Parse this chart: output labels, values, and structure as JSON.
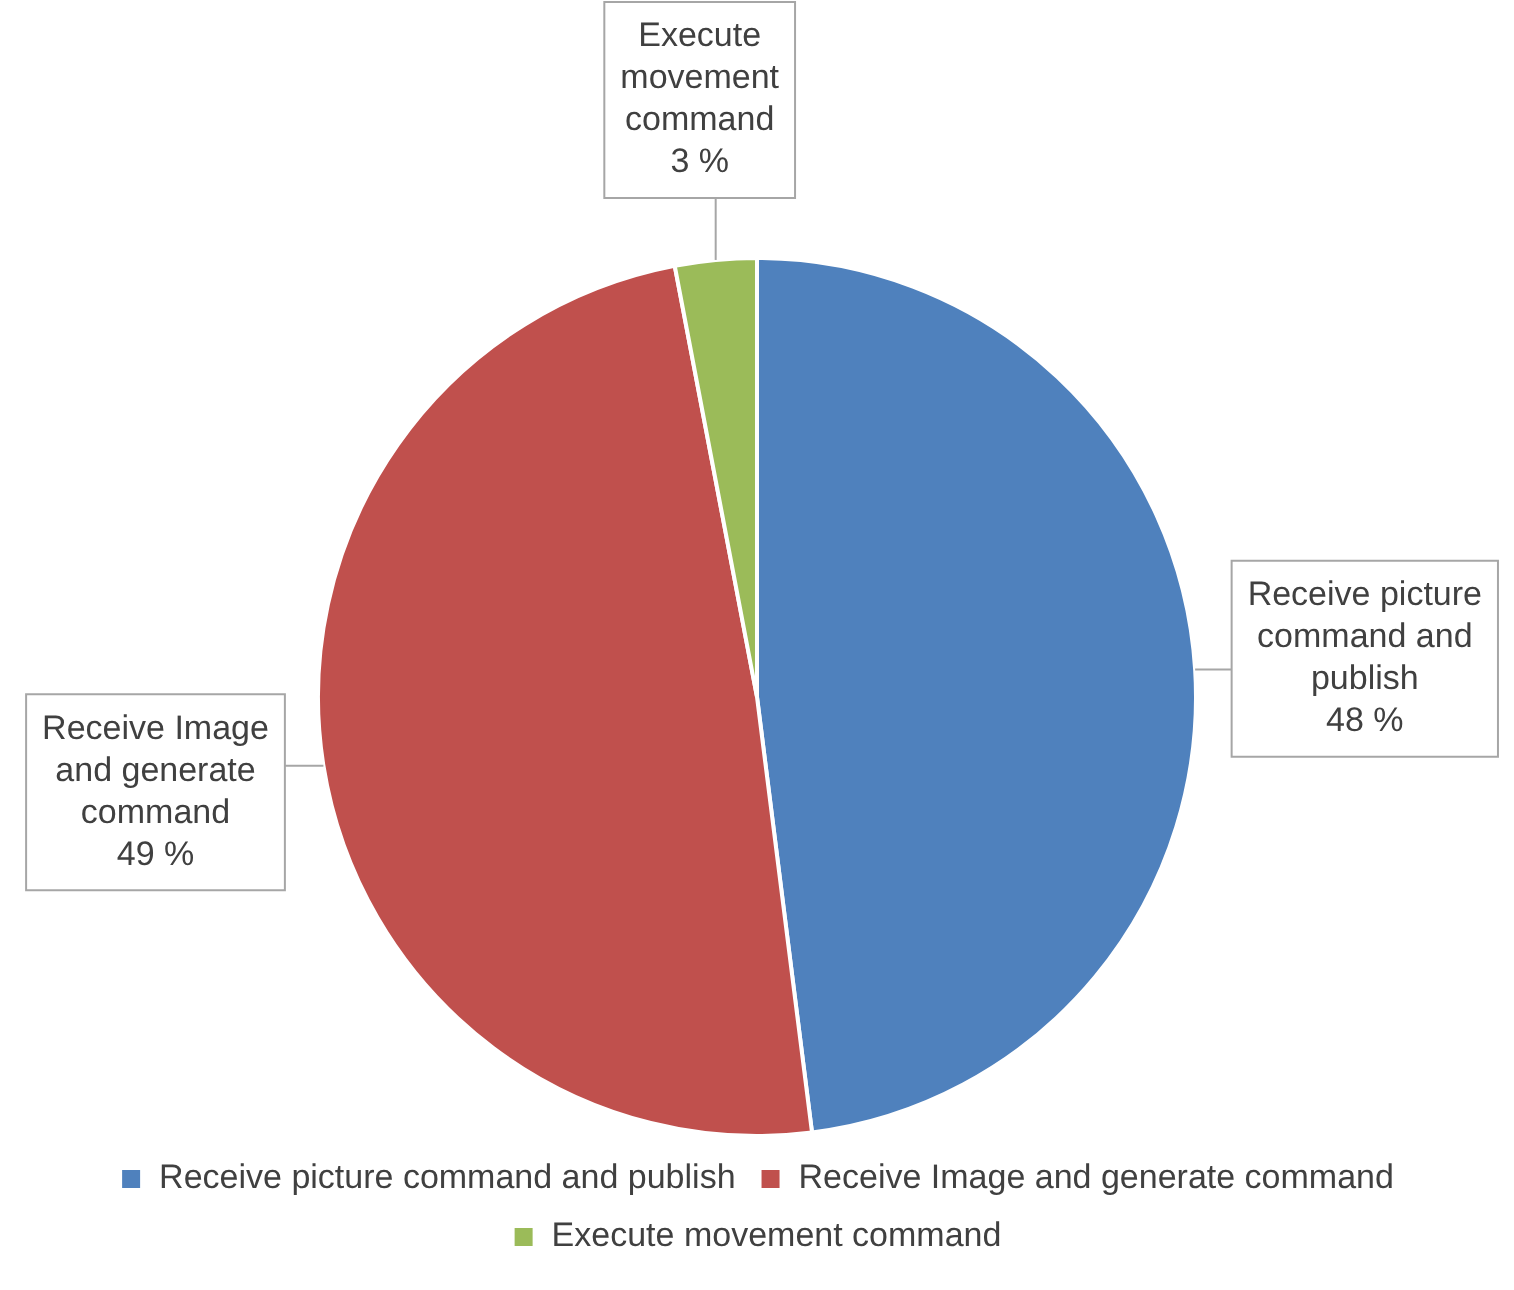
{
  "chart_data": {
    "type": "pie",
    "categories": [
      "Receive picture command and publish",
      "Receive Image and generate command",
      "Execute movement command"
    ],
    "values": [
      48,
      49,
      3
    ],
    "colors": [
      "#4f81bd",
      "#c0504d",
      "#9bbb59"
    ],
    "value_labels": [
      "48 %",
      "49 %",
      "3 %"
    ],
    "legend": "bottom"
  }
}
